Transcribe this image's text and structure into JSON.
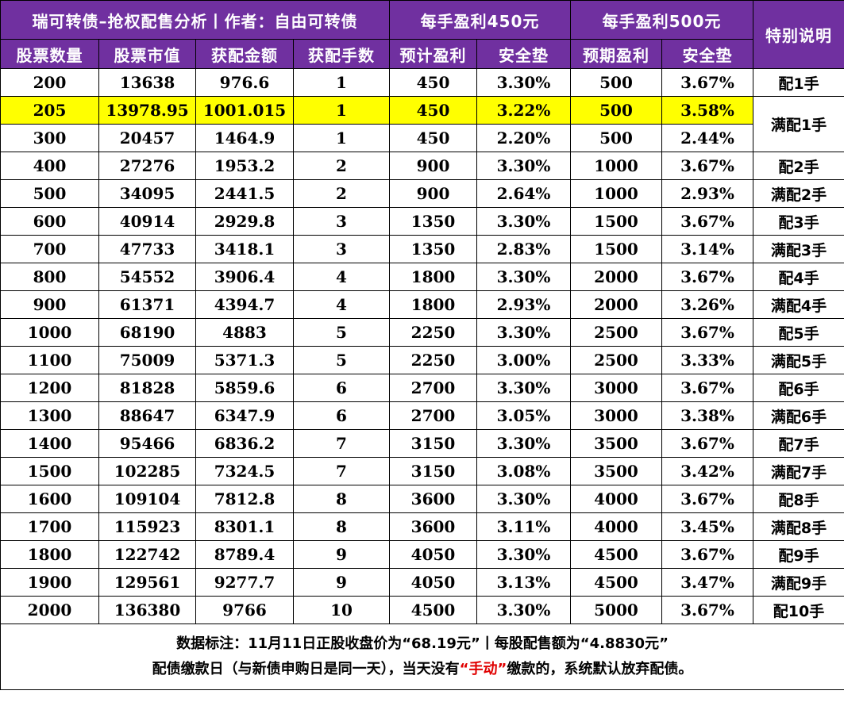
{
  "header": {
    "title": "瑞可转债–抢权配售分析丨作者：自由可转债",
    "group_450": "每手盈利450元",
    "group_500": "每手盈利500元",
    "special_note": "特别说明",
    "columns": [
      "股票数量",
      "股票市值",
      "获配金额",
      "获配手数",
      "预计盈利",
      "安全垫",
      "预期盈利",
      "安全垫"
    ]
  },
  "colors": {
    "header_bg": "#7030a0",
    "header_text": "#ffffff",
    "highlight_row": "#ffff00",
    "accent_red": "#e00000"
  },
  "rows": [
    {
      "shares": "200",
      "market_value": "13638",
      "allot_amount": "976.6",
      "lots": "1",
      "profit_450": "450",
      "cushion_450": "3.30%",
      "profit_500": "500",
      "cushion_500": "3.67%"
    },
    {
      "shares": "205",
      "market_value": "13978.95",
      "allot_amount": "1001.015",
      "lots": "1",
      "profit_450": "450",
      "cushion_450": "3.22%",
      "profit_500": "500",
      "cushion_500": "3.58%"
    },
    {
      "shares": "300",
      "market_value": "20457",
      "allot_amount": "1464.9",
      "lots": "1",
      "profit_450": "450",
      "cushion_450": "2.20%",
      "profit_500": "500",
      "cushion_500": "2.44%"
    },
    {
      "shares": "400",
      "market_value": "27276",
      "allot_amount": "1953.2",
      "lots": "2",
      "profit_450": "900",
      "cushion_450": "3.30%",
      "profit_500": "1000",
      "cushion_500": "3.67%"
    },
    {
      "shares": "500",
      "market_value": "34095",
      "allot_amount": "2441.5",
      "lots": "2",
      "profit_450": "900",
      "cushion_450": "2.64%",
      "profit_500": "1000",
      "cushion_500": "2.93%"
    },
    {
      "shares": "600",
      "market_value": "40914",
      "allot_amount": "2929.8",
      "lots": "3",
      "profit_450": "1350",
      "cushion_450": "3.30%",
      "profit_500": "1500",
      "cushion_500": "3.67%"
    },
    {
      "shares": "700",
      "market_value": "47733",
      "allot_amount": "3418.1",
      "lots": "3",
      "profit_450": "1350",
      "cushion_450": "2.83%",
      "profit_500": "1500",
      "cushion_500": "3.14%"
    },
    {
      "shares": "800",
      "market_value": "54552",
      "allot_amount": "3906.4",
      "lots": "4",
      "profit_450": "1800",
      "cushion_450": "3.30%",
      "profit_500": "2000",
      "cushion_500": "3.67%"
    },
    {
      "shares": "900",
      "market_value": "61371",
      "allot_amount": "4394.7",
      "lots": "4",
      "profit_450": "1800",
      "cushion_450": "2.93%",
      "profit_500": "2000",
      "cushion_500": "3.26%"
    },
    {
      "shares": "1000",
      "market_value": "68190",
      "allot_amount": "4883",
      "lots": "5",
      "profit_450": "2250",
      "cushion_450": "3.30%",
      "profit_500": "2500",
      "cushion_500": "3.67%"
    },
    {
      "shares": "1100",
      "market_value": "75009",
      "allot_amount": "5371.3",
      "lots": "5",
      "profit_450": "2250",
      "cushion_450": "3.00%",
      "profit_500": "2500",
      "cushion_500": "3.33%"
    },
    {
      "shares": "1200",
      "market_value": "81828",
      "allot_amount": "5859.6",
      "lots": "6",
      "profit_450": "2700",
      "cushion_450": "3.30%",
      "profit_500": "3000",
      "cushion_500": "3.67%"
    },
    {
      "shares": "1300",
      "market_value": "88647",
      "allot_amount": "6347.9",
      "lots": "6",
      "profit_450": "2700",
      "cushion_450": "3.05%",
      "profit_500": "3000",
      "cushion_500": "3.38%"
    },
    {
      "shares": "1400",
      "market_value": "95466",
      "allot_amount": "6836.2",
      "lots": "7",
      "profit_450": "3150",
      "cushion_450": "3.30%",
      "profit_500": "3500",
      "cushion_500": "3.67%"
    },
    {
      "shares": "1500",
      "market_value": "102285",
      "allot_amount": "7324.5",
      "lots": "7",
      "profit_450": "3150",
      "cushion_450": "3.08%",
      "profit_500": "3500",
      "cushion_500": "3.42%"
    },
    {
      "shares": "1600",
      "market_value": "109104",
      "allot_amount": "7812.8",
      "lots": "8",
      "profit_450": "3600",
      "cushion_450": "3.30%",
      "profit_500": "4000",
      "cushion_500": "3.67%"
    },
    {
      "shares": "1700",
      "market_value": "115923",
      "allot_amount": "8301.1",
      "lots": "8",
      "profit_450": "3600",
      "cushion_450": "3.11%",
      "profit_500": "4000",
      "cushion_500": "3.45%"
    },
    {
      "shares": "1800",
      "market_value": "122742",
      "allot_amount": "8789.4",
      "lots": "9",
      "profit_450": "4050",
      "cushion_450": "3.30%",
      "profit_500": "4500",
      "cushion_500": "3.67%"
    },
    {
      "shares": "1900",
      "market_value": "129561",
      "allot_amount": "9277.7",
      "lots": "9",
      "profit_450": "4050",
      "cushion_450": "3.13%",
      "profit_500": "4500",
      "cushion_500": "3.47%"
    },
    {
      "shares": "2000",
      "market_value": "136380",
      "allot_amount": "9766",
      "lots": "10",
      "profit_450": "4500",
      "cushion_450": "3.30%",
      "profit_500": "5000",
      "cushion_500": "3.67%"
    }
  ],
  "notes": [
    "配1手",
    "满配1手",
    "配2手",
    "满配2手",
    "配3手",
    "满配3手",
    "配4手",
    "满配4手",
    "配5手",
    "满配5手",
    "配6手",
    "满配6手",
    "配7手",
    "满配7手",
    "配8手",
    "满配8手",
    "配9手",
    "满配9手",
    "配10手"
  ],
  "footer": {
    "line1": "数据标注：11月11日正股收盘价为“68.19元”丨每股配售额为“4.8830元”",
    "line2_prefix": "配债缴款日（与新债申购日是同一天），当天没有",
    "line2_red": "“手动”",
    "line2_suffix": "缴款的，系统默认放弃配债。"
  }
}
